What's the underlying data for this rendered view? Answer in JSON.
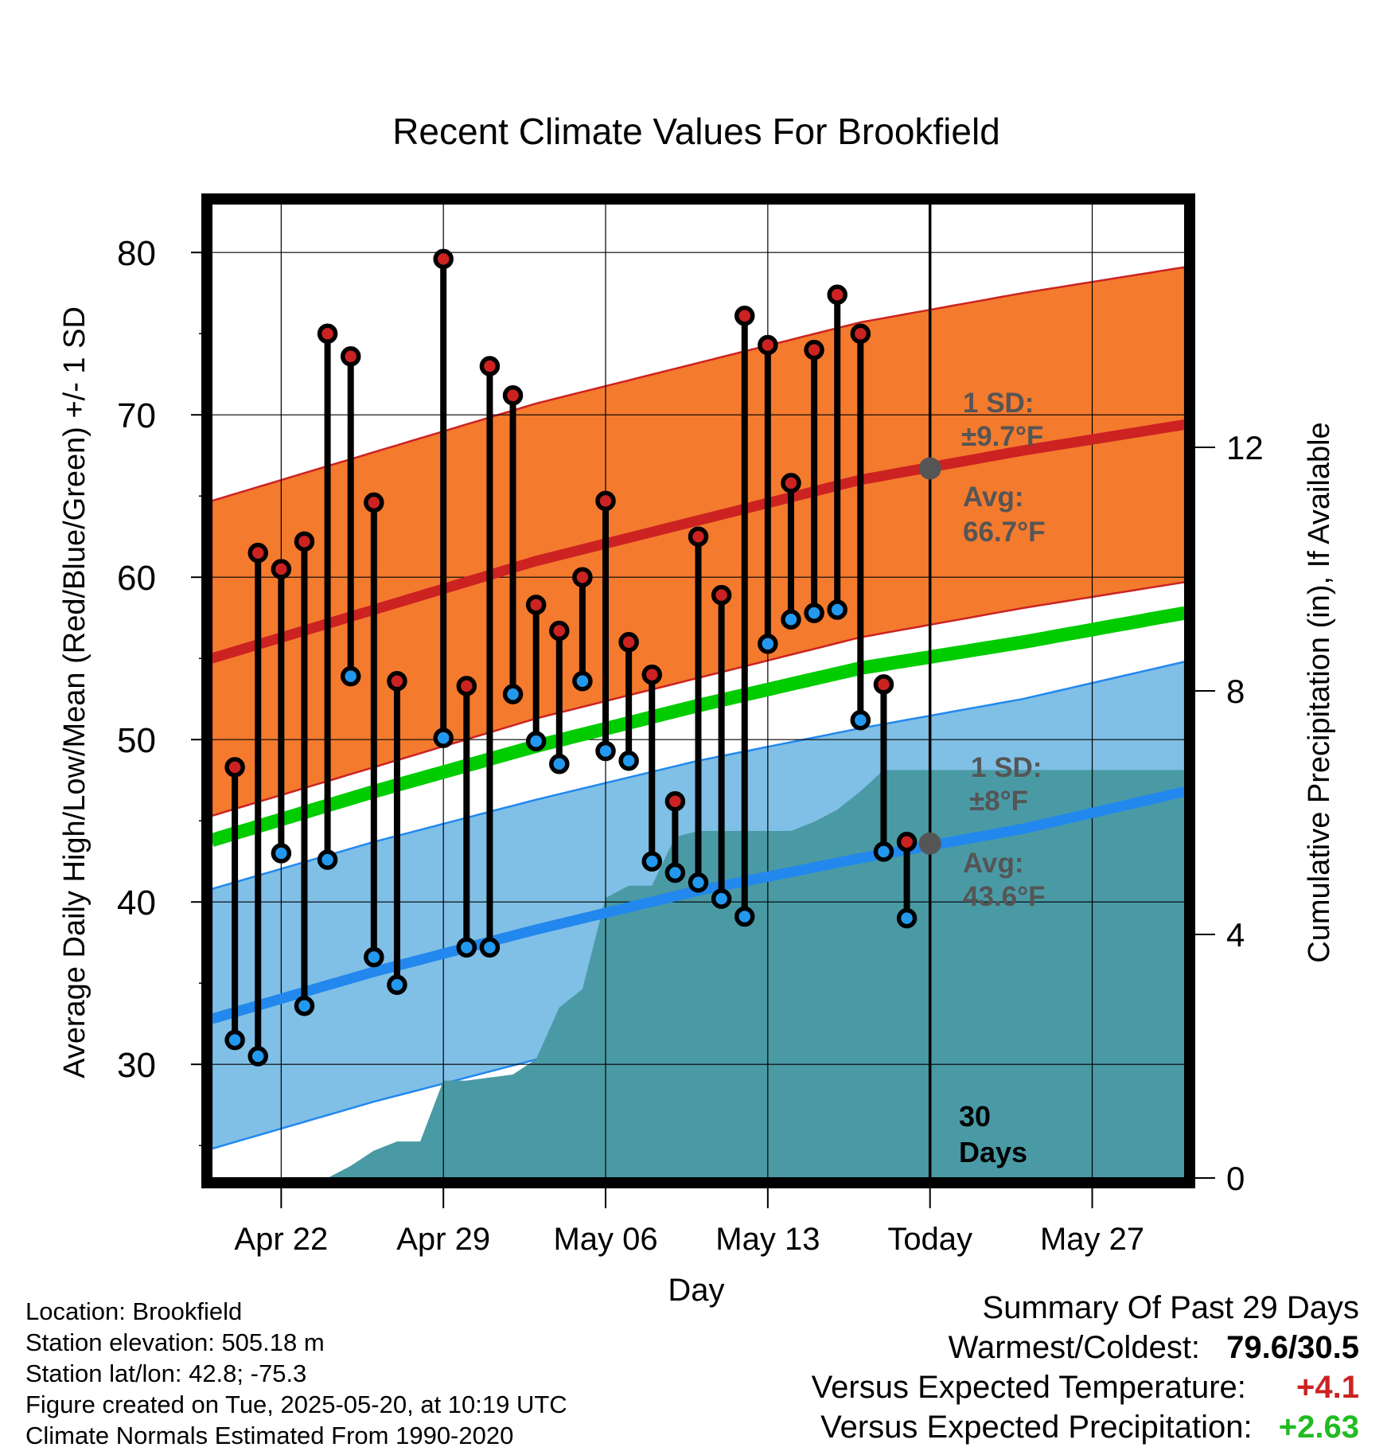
{
  "chart_data": {
    "type": "line",
    "title": "Recent Climate Values For Brookfield",
    "xlabel": "Day",
    "ylabel": "Average Daily High/Low/Mean (Red/Blue/Green) +/- 1 SD",
    "y2label": "Cumulative Precipitation (in), If Available",
    "xlim": [
      "2025-04-19",
      "2025-05-31"
    ],
    "ylim": [
      23,
      83
    ],
    "y2lim": [
      0,
      16
    ],
    "x_ticks": [
      {
        "date": "2025-04-22",
        "label": "Apr 22"
      },
      {
        "date": "2025-04-29",
        "label": "Apr 29"
      },
      {
        "date": "2025-05-06",
        "label": "May 06"
      },
      {
        "date": "2025-05-13",
        "label": "May 13"
      },
      {
        "date": "2025-05-20",
        "label": "Today"
      },
      {
        "date": "2025-05-27",
        "label": "May 27"
      }
    ],
    "y_ticks": [
      30,
      40,
      50,
      60,
      70,
      80
    ],
    "y2_ticks": [
      0,
      4,
      8,
      12
    ],
    "grid": true,
    "today": "2025-05-20",
    "today_label_line1": "30",
    "today_label_line2": "Days",
    "colors": {
      "high": "#cc2222",
      "high_band": "#f47a2e",
      "mean": "#00cc00",
      "low": "#2288ee",
      "low_band": "#80bfe6",
      "precip": "#4a9aa5",
      "marker_high": "#cc2222",
      "marker_low": "#2299ee",
      "today_marker": "#555555"
    },
    "normals": {
      "x": [
        "2025-04-19",
        "2025-04-26",
        "2025-05-03",
        "2025-05-10",
        "2025-05-17",
        "2025-05-24",
        "2025-05-31"
      ],
      "high": [
        55.0,
        58.0,
        61.0,
        63.5,
        66.0,
        67.8,
        69.4
      ],
      "low": [
        32.8,
        35.7,
        38.3,
        40.7,
        42.7,
        44.5,
        46.8
      ],
      "mean": [
        43.8,
        46.8,
        49.6,
        52.1,
        54.4,
        56.0,
        57.8
      ],
      "high_sd": 9.7,
      "low_sd": 8
    },
    "observed": {
      "dates": [
        "2025-04-20",
        "2025-04-21",
        "2025-04-22",
        "2025-04-23",
        "2025-04-24",
        "2025-04-25",
        "2025-04-26",
        "2025-04-27",
        "2025-04-29",
        "2025-04-30",
        "2025-05-01",
        "2025-05-02",
        "2025-05-03",
        "2025-05-04",
        "2025-05-05",
        "2025-05-06",
        "2025-05-07",
        "2025-05-08",
        "2025-05-09",
        "2025-05-10",
        "2025-05-11",
        "2025-05-12",
        "2025-05-13",
        "2025-05-14",
        "2025-05-15",
        "2025-05-16",
        "2025-05-17",
        "2025-05-18",
        "2025-05-19"
      ],
      "high": [
        48.3,
        61.5,
        60.5,
        62.2,
        75.0,
        73.6,
        64.6,
        53.6,
        79.6,
        53.3,
        73.0,
        71.2,
        58.3,
        56.7,
        60.0,
        64.7,
        56.0,
        54.0,
        46.2,
        62.5,
        58.9,
        76.1,
        74.3,
        65.8,
        74.0,
        77.4,
        75.0,
        53.4,
        43.7
      ],
      "low": [
        31.5,
        30.5,
        43.0,
        33.6,
        42.6,
        53.9,
        36.6,
        34.9,
        50.1,
        37.2,
        37.2,
        52.8,
        49.9,
        48.5,
        53.6,
        49.3,
        48.7,
        42.5,
        41.8,
        41.2,
        40.2,
        39.1,
        55.9,
        57.4,
        57.8,
        58.0,
        51.2,
        43.1,
        39.0
      ]
    },
    "precip_cumulative": {
      "x": [
        "2025-04-24",
        "2025-04-25",
        "2025-04-26",
        "2025-04-27",
        "2025-04-28",
        "2025-04-29",
        "2025-04-30",
        "2025-05-01",
        "2025-05-02",
        "2025-05-03",
        "2025-05-04",
        "2025-05-05",
        "2025-05-06",
        "2025-05-07",
        "2025-05-08",
        "2025-05-09",
        "2025-05-10",
        "2025-05-11",
        "2025-05-12",
        "2025-05-13",
        "2025-05-14",
        "2025-05-15",
        "2025-05-16",
        "2025-05-17",
        "2025-05-18",
        "2025-05-19",
        "2025-05-20",
        "2025-05-31"
      ],
      "y": [
        0.0,
        0.2,
        0.45,
        0.6,
        0.6,
        1.6,
        1.6,
        1.65,
        1.7,
        1.95,
        2.8,
        3.1,
        4.6,
        4.8,
        4.8,
        5.6,
        5.7,
        5.7,
        5.7,
        5.7,
        5.7,
        5.85,
        6.05,
        6.35,
        6.7,
        6.7,
        6.7,
        6.7
      ]
    },
    "annotations": {
      "high_sd_line1": "1 SD:",
      "high_sd_line2": "±9.7°F",
      "high_avg_line1": "Avg:",
      "high_avg_line2": "66.7°F",
      "high_avg_value": 66.7,
      "low_sd_line1": "1 SD:",
      "low_sd_line2": "±8°F",
      "low_avg_line1": "Avg:",
      "low_avg_line2": "43.6°F",
      "low_avg_value": 43.6
    }
  },
  "info": {
    "location": "Location: Brookfield",
    "elevation": "Station elevation: 505.18 m",
    "latlon": "Station lat/lon: 42.8; -75.3",
    "created": "Figure created on Tue, 2025-05-20, at 10:19 UTC",
    "normals": "Climate Normals Estimated From 1990-2020"
  },
  "summary": {
    "title": "Summary Of Past 29 Days",
    "warm_cold_label": "Warmest/Coldest:",
    "warm_cold_value": "79.6/30.5",
    "temp_label": "Versus Expected Temperature:",
    "temp_value": "+4.1",
    "precip_label": "Versus Expected Precipitation:",
    "precip_value": "+2.63"
  }
}
